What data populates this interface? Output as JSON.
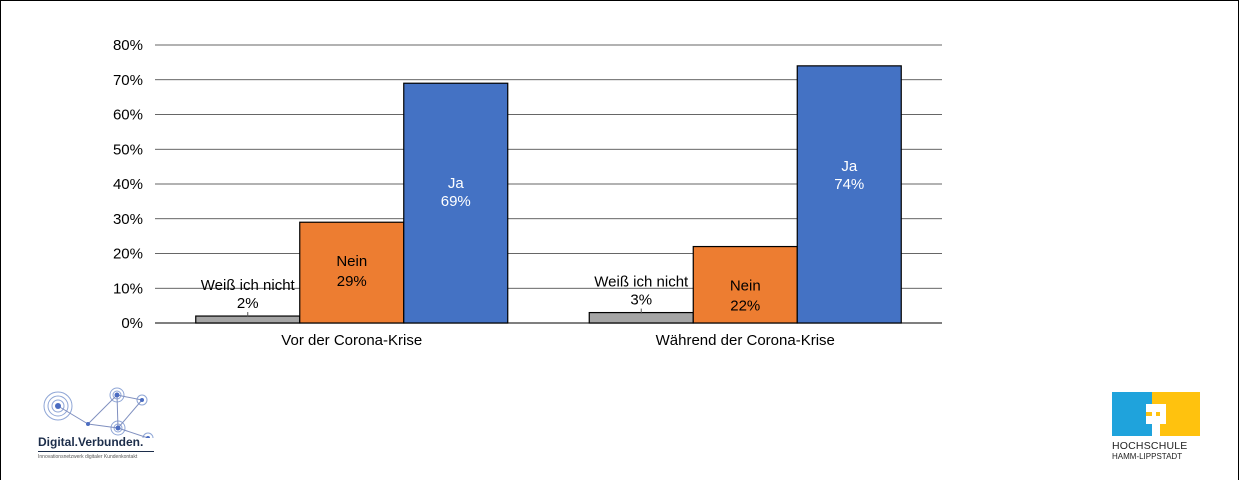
{
  "chart_data": {
    "type": "bar",
    "categories": [
      "Vor der Corona-Krise",
      "Während der Corona-Krise"
    ],
    "series": [
      {
        "name": "Weiß ich nicht",
        "values": [
          2,
          3
        ],
        "color": "#a5a5a5",
        "labels": [
          "2%",
          "3%"
        ]
      },
      {
        "name": "Nein",
        "values": [
          29,
          22
        ],
        "color": "#ed7d31",
        "labels": [
          "29%",
          "22%"
        ]
      },
      {
        "name": "Ja",
        "values": [
          69,
          74
        ],
        "color": "#4472c4",
        "labels": [
          "69%",
          "74%"
        ]
      }
    ],
    "ylim": [
      0,
      80
    ],
    "yticks": [
      "0%",
      "10%",
      "20%",
      "30%",
      "40%",
      "50%",
      "60%",
      "70%",
      "80%"
    ],
    "grid": true,
    "legend": "none"
  },
  "logos": {
    "left": {
      "name": "Digital.Verbunden.",
      "tagline": "Innovationsnetzwerk digitaler Kundenkontakt",
      "icon": "network-icon"
    },
    "right": {
      "name": "HOCHSCHULE",
      "subtitle": "HAMM-LIPPSTADT",
      "icon": "plus-squares-icon",
      "colors": [
        "#1fa3dc",
        "#ffc20e"
      ]
    }
  }
}
